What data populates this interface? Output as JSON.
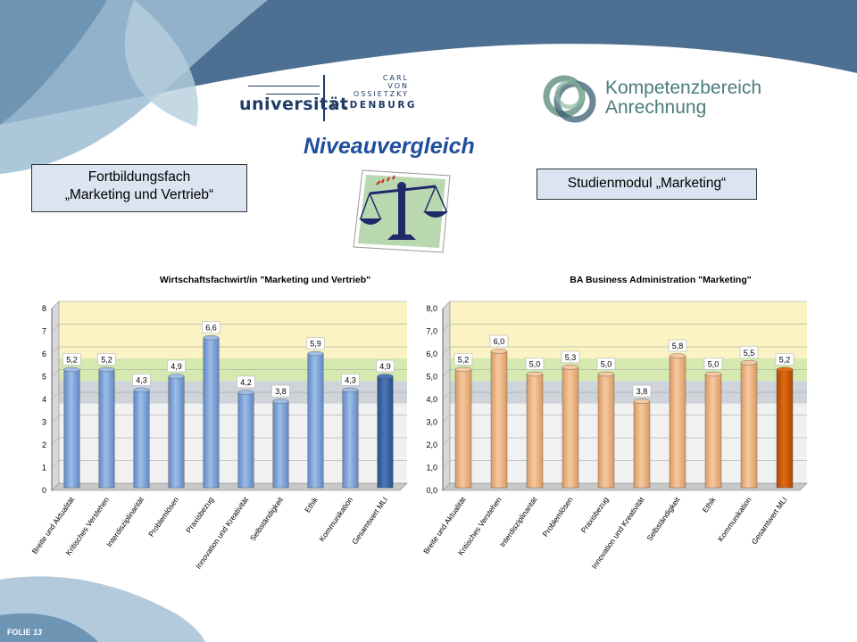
{
  "header": {
    "uni_logo": {
      "carl": "CARL",
      "von": "VON",
      "ossietzky": "OSSIETZKY",
      "universitaet": "universität",
      "oldenburg": "OLDENBURG"
    },
    "kompetenz_logo": {
      "line1": "Kompetenzbereich",
      "line2": "Anrechnung"
    }
  },
  "title": "Niveauvergleich",
  "left_box": {
    "line1": "Fortbildungsfach",
    "line2": "„Marketing und Vertrieb“"
  },
  "right_box": {
    "label": "Studienmodul „Marketing“"
  },
  "footer": {
    "prefix": "FOLIE",
    "number": "13"
  },
  "colors": {
    "title": "#1f4e9c",
    "left_bar": "#9dbde8",
    "left_bar_highlight": "#4a78b8",
    "right_bar": "#f7c9a0",
    "right_bar_highlight": "#e36a10",
    "band_yellow": "#fbf3c4",
    "band_green": "#d6e9b0",
    "band_gray": "#cfd3da"
  },
  "chart_data": [
    {
      "type": "bar",
      "title": "Wirtschaftsfachwirt/in \"Marketing und Vertrieb\"",
      "categories": [
        "Breite und Aktualität",
        "Kritisches Verstehen",
        "Interdisziplinarität",
        "Problemlösen",
        "Praxisbezug",
        "Innovation und Kreativität",
        "Selbständigkeit",
        "Ethik",
        "Kommunikation",
        "Gesamtwert MLI"
      ],
      "values": [
        5.2,
        5.2,
        4.3,
        4.9,
        6.6,
        4.2,
        3.8,
        5.9,
        4.3,
        4.9
      ],
      "value_labels": [
        "5,2",
        "5,2",
        "4,3",
        "4,9",
        "6,6",
        "4,2",
        "3,8",
        "5,9",
        "4,3",
        "4,9"
      ],
      "ylim": [
        0,
        8
      ],
      "yticks": [
        "0",
        "1",
        "2",
        "3",
        "4",
        "5",
        "6",
        "7",
        "8"
      ],
      "highlight_index": 9,
      "xlabel": "",
      "ylabel": ""
    },
    {
      "type": "bar",
      "title": "BA Business Administration \"Marketing\"",
      "categories": [
        "Breite und Aktualität",
        "Kritisches Verstehen",
        "Interdisziplinarität",
        "Problemlösen",
        "Praxisbezug",
        "Innovation und Kreativität",
        "Selbständigkeit",
        "Ethik",
        "Kommunikation",
        "Gesamtwert MLI"
      ],
      "values": [
        5.2,
        6.0,
        5.0,
        5.3,
        5.0,
        3.8,
        5.8,
        5.0,
        5.5,
        5.2
      ],
      "value_labels": [
        "5,2",
        "6,0",
        "5,0",
        "5,3",
        "5,0",
        "3,8",
        "5,8",
        "5,0",
        "5,5",
        "5,2"
      ],
      "ylim": [
        0,
        8
      ],
      "yticks": [
        "0,0",
        "1,0",
        "2,0",
        "3,0",
        "4,0",
        "5,0",
        "6,0",
        "7,0",
        "8,0"
      ],
      "highlight_index": 9,
      "xlabel": "",
      "ylabel": ""
    }
  ]
}
